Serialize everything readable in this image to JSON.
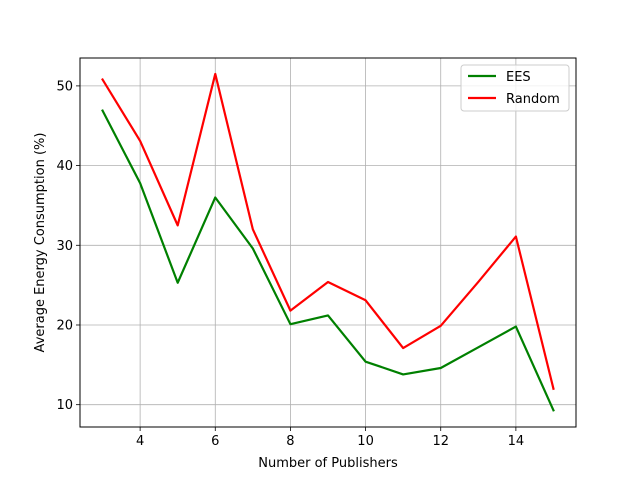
{
  "chart_data": {
    "type": "line",
    "xlabel": "Number of Publishers",
    "ylabel": "Average Energy Consumption (%)",
    "xlim": [
      2.4,
      15.6
    ],
    "ylim": [
      7.2,
      53.5
    ],
    "xticks": [
      4,
      6,
      8,
      10,
      12,
      14
    ],
    "yticks": [
      10,
      20,
      30,
      40,
      50
    ],
    "xtick_labels": [
      "4",
      "6",
      "8",
      "10",
      "12",
      "14"
    ],
    "ytick_labels": [
      "10",
      "20",
      "30",
      "40",
      "50"
    ],
    "grid": true,
    "legend_position": "top-right",
    "x": [
      3,
      4,
      5,
      6,
      7,
      8,
      9,
      10,
      11,
      12,
      13,
      14,
      15
    ],
    "series": [
      {
        "name": "EES",
        "color": "#008000",
        "values": [
          46.9,
          37.8,
          25.3,
          36.0,
          29.6,
          20.1,
          21.2,
          15.4,
          13.8,
          14.6,
          17.2,
          19.8,
          9.3
        ]
      },
      {
        "name": "Random",
        "color": "#ff0000",
        "values": [
          50.8,
          43.1,
          32.5,
          51.5,
          32.0,
          21.8,
          25.4,
          23.1,
          17.1,
          19.9,
          25.4,
          31.1,
          12.0
        ]
      }
    ]
  }
}
